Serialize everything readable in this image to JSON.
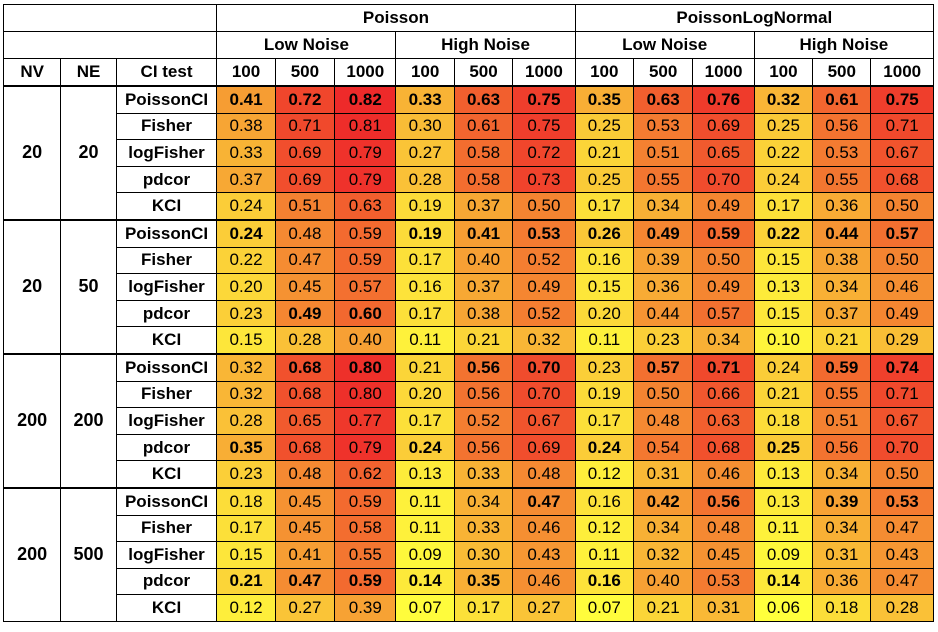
{
  "header": {
    "families": [
      "Poisson",
      "PoissonLogNormal"
    ],
    "noise_levels": [
      "Low Noise",
      "High Noise",
      "Low Noise",
      "High Noise"
    ],
    "col_labels": [
      "NV",
      "NE",
      "CI test"
    ],
    "sample_sizes": [
      "100",
      "500",
      "1000",
      "100",
      "500",
      "1000",
      "100",
      "500",
      "1000",
      "100",
      "500",
      "1000"
    ]
  },
  "colors": {
    "low": "#ffff3c",
    "mid": "#f69a33",
    "high": "#ee2a2a"
  },
  "groups": [
    {
      "nv": "20",
      "ne": "20",
      "rows": [
        {
          "test": "PoissonCI",
          "values": [
            "0.41",
            "0.72",
            "0.82",
            "0.33",
            "0.63",
            "0.75",
            "0.35",
            "0.63",
            "0.76",
            "0.32",
            "0.61",
            "0.75"
          ],
          "bold": [
            true,
            true,
            true,
            true,
            true,
            true,
            true,
            true,
            true,
            true,
            true,
            true
          ]
        },
        {
          "test": "Fisher",
          "values": [
            "0.38",
            "0.71",
            "0.81",
            "0.30",
            "0.61",
            "0.75",
            "0.25",
            "0.53",
            "0.69",
            "0.25",
            "0.56",
            "0.71"
          ],
          "bold": [
            false,
            false,
            false,
            false,
            false,
            false,
            false,
            false,
            false,
            false,
            false,
            false
          ]
        },
        {
          "test": "logFisher",
          "values": [
            "0.33",
            "0.69",
            "0.79",
            "0.27",
            "0.58",
            "0.72",
            "0.21",
            "0.51",
            "0.65",
            "0.22",
            "0.53",
            "0.67"
          ],
          "bold": [
            false,
            false,
            false,
            false,
            false,
            false,
            false,
            false,
            false,
            false,
            false,
            false
          ]
        },
        {
          "test": "pdcor",
          "values": [
            "0.37",
            "0.69",
            "0.79",
            "0.28",
            "0.58",
            "0.73",
            "0.25",
            "0.55",
            "0.70",
            "0.24",
            "0.55",
            "0.68"
          ],
          "bold": [
            false,
            false,
            false,
            false,
            false,
            false,
            false,
            false,
            false,
            false,
            false,
            false
          ]
        },
        {
          "test": "KCI",
          "values": [
            "0.24",
            "0.51",
            "0.63",
            "0.19",
            "0.37",
            "0.50",
            "0.17",
            "0.34",
            "0.49",
            "0.17",
            "0.36",
            "0.50"
          ],
          "bold": [
            false,
            false,
            false,
            false,
            false,
            false,
            false,
            false,
            false,
            false,
            false,
            false
          ]
        }
      ]
    },
    {
      "nv": "20",
      "ne": "50",
      "rows": [
        {
          "test": "PoissonCI",
          "values": [
            "0.24",
            "0.48",
            "0.59",
            "0.19",
            "0.41",
            "0.53",
            "0.26",
            "0.49",
            "0.59",
            "0.22",
            "0.44",
            "0.57"
          ],
          "bold": [
            true,
            false,
            false,
            true,
            true,
            true,
            true,
            true,
            true,
            true,
            true,
            true
          ]
        },
        {
          "test": "Fisher",
          "values": [
            "0.22",
            "0.47",
            "0.59",
            "0.17",
            "0.40",
            "0.52",
            "0.16",
            "0.39",
            "0.50",
            "0.15",
            "0.38",
            "0.50"
          ],
          "bold": [
            false,
            false,
            false,
            false,
            false,
            false,
            false,
            false,
            false,
            false,
            false,
            false
          ]
        },
        {
          "test": "logFisher",
          "values": [
            "0.20",
            "0.45",
            "0.57",
            "0.16",
            "0.37",
            "0.49",
            "0.15",
            "0.36",
            "0.49",
            "0.13",
            "0.34",
            "0.46"
          ],
          "bold": [
            false,
            false,
            false,
            false,
            false,
            false,
            false,
            false,
            false,
            false,
            false,
            false
          ]
        },
        {
          "test": "pdcor",
          "values": [
            "0.23",
            "0.49",
            "0.60",
            "0.17",
            "0.38",
            "0.52",
            "0.20",
            "0.44",
            "0.57",
            "0.15",
            "0.37",
            "0.49"
          ],
          "bold": [
            false,
            true,
            true,
            false,
            false,
            false,
            false,
            false,
            false,
            false,
            false,
            false
          ]
        },
        {
          "test": "KCI",
          "values": [
            "0.15",
            "0.28",
            "0.40",
            "0.11",
            "0.21",
            "0.32",
            "0.11",
            "0.23",
            "0.34",
            "0.10",
            "0.21",
            "0.29"
          ],
          "bold": [
            false,
            false,
            false,
            false,
            false,
            false,
            false,
            false,
            false,
            false,
            false,
            false
          ]
        }
      ]
    },
    {
      "nv": "200",
      "ne": "200",
      "rows": [
        {
          "test": "PoissonCI",
          "values": [
            "0.32",
            "0.68",
            "0.80",
            "0.21",
            "0.56",
            "0.70",
            "0.23",
            "0.57",
            "0.71",
            "0.24",
            "0.59",
            "0.74"
          ],
          "bold": [
            false,
            true,
            true,
            false,
            true,
            true,
            false,
            true,
            true,
            false,
            true,
            true
          ]
        },
        {
          "test": "Fisher",
          "values": [
            "0.32",
            "0.68",
            "0.80",
            "0.20",
            "0.56",
            "0.70",
            "0.19",
            "0.50",
            "0.66",
            "0.21",
            "0.55",
            "0.71"
          ],
          "bold": [
            false,
            false,
            false,
            false,
            false,
            false,
            false,
            false,
            false,
            false,
            false,
            false
          ]
        },
        {
          "test": "logFisher",
          "values": [
            "0.28",
            "0.65",
            "0.77",
            "0.17",
            "0.52",
            "0.67",
            "0.17",
            "0.48",
            "0.63",
            "0.18",
            "0.51",
            "0.67"
          ],
          "bold": [
            false,
            false,
            false,
            false,
            false,
            false,
            false,
            false,
            false,
            false,
            false,
            false
          ]
        },
        {
          "test": "pdcor",
          "values": [
            "0.35",
            "0.68",
            "0.79",
            "0.24",
            "0.56",
            "0.69",
            "0.24",
            "0.54",
            "0.68",
            "0.25",
            "0.56",
            "0.70"
          ],
          "bold": [
            true,
            false,
            false,
            true,
            false,
            false,
            true,
            false,
            false,
            true,
            false,
            false
          ]
        },
        {
          "test": "KCI",
          "values": [
            "0.23",
            "0.48",
            "0.62",
            "0.13",
            "0.33",
            "0.48",
            "0.12",
            "0.31",
            "0.46",
            "0.13",
            "0.34",
            "0.50"
          ],
          "bold": [
            false,
            false,
            false,
            false,
            false,
            false,
            false,
            false,
            false,
            false,
            false,
            false
          ]
        }
      ]
    },
    {
      "nv": "200",
      "ne": "500",
      "rows": [
        {
          "test": "PoissonCI",
          "values": [
            "0.18",
            "0.45",
            "0.59",
            "0.11",
            "0.34",
            "0.47",
            "0.16",
            "0.42",
            "0.56",
            "0.13",
            "0.39",
            "0.53"
          ],
          "bold": [
            false,
            false,
            false,
            false,
            false,
            true,
            false,
            true,
            true,
            false,
            true,
            true
          ]
        },
        {
          "test": "Fisher",
          "values": [
            "0.17",
            "0.45",
            "0.58",
            "0.11",
            "0.33",
            "0.46",
            "0.12",
            "0.34",
            "0.48",
            "0.11",
            "0.34",
            "0.47"
          ],
          "bold": [
            false,
            false,
            false,
            false,
            false,
            false,
            false,
            false,
            false,
            false,
            false,
            false
          ]
        },
        {
          "test": "logFisher",
          "values": [
            "0.15",
            "0.41",
            "0.55",
            "0.09",
            "0.30",
            "0.43",
            "0.11",
            "0.32",
            "0.45",
            "0.09",
            "0.31",
            "0.43"
          ],
          "bold": [
            false,
            false,
            false,
            false,
            false,
            false,
            false,
            false,
            false,
            false,
            false,
            false
          ]
        },
        {
          "test": "pdcor",
          "values": [
            "0.21",
            "0.47",
            "0.59",
            "0.14",
            "0.35",
            "0.46",
            "0.16",
            "0.40",
            "0.53",
            "0.14",
            "0.36",
            "0.47"
          ],
          "bold": [
            true,
            true,
            true,
            true,
            true,
            false,
            true,
            false,
            false,
            true,
            false,
            false
          ]
        },
        {
          "test": "KCI",
          "values": [
            "0.12",
            "0.27",
            "0.39",
            "0.07",
            "0.17",
            "0.27",
            "0.07",
            "0.21",
            "0.31",
            "0.06",
            "0.18",
            "0.28"
          ],
          "bold": [
            false,
            false,
            false,
            false,
            false,
            false,
            false,
            false,
            false,
            false,
            false,
            false
          ]
        }
      ]
    }
  ]
}
